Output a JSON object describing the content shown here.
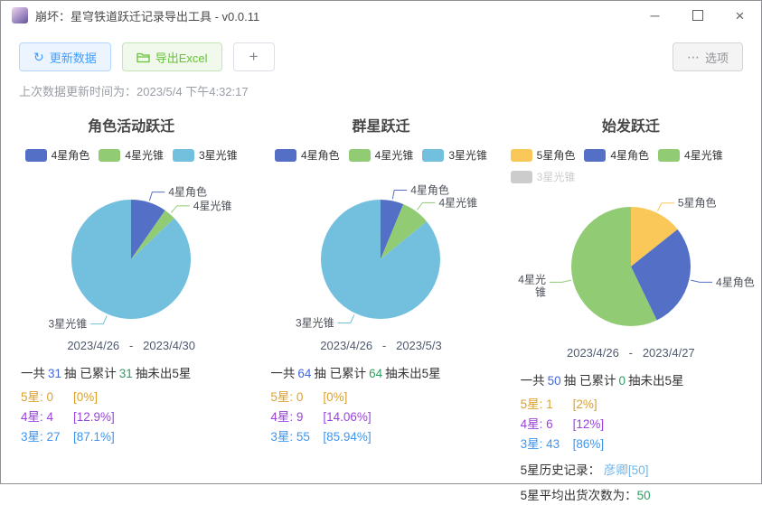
{
  "window": {
    "title": "崩坏：星穹铁道跃迁记录导出工具 - v0.0.11",
    "controls": {
      "minimize_glyph": "─",
      "close_glyph": "×"
    }
  },
  "toolbar": {
    "refresh_icon": "↻",
    "refresh_label": "更新数据",
    "export_label": "导出Excel",
    "add_label": "+",
    "options_icon": "⋯",
    "options_label": "选项"
  },
  "status_line": {
    "label": "上次数据更新时间为：",
    "value": "2023/5/4 下午4:32:17"
  },
  "colors": {
    "four_star_character": "#5470c6",
    "four_star_lightcone": "#91cc75",
    "three_star_lightcone": "#73c0de",
    "five_star_character": "#fac858",
    "disabled_legend": "#cccccc",
    "five_star_text": "#dca12c",
    "four_star_text": "#9b44dd",
    "three_star_text": "#3f96ee",
    "total_number": "#4168e0",
    "pity_number": "#2f9d63"
  },
  "chart_data": [
    {
      "type": "pie",
      "title": "角色活动跃迁",
      "legend": [
        {
          "label": "4星角色",
          "color": "#5470c6",
          "disabled": false
        },
        {
          "label": "4星光锥",
          "color": "#91cc75",
          "disabled": false
        },
        {
          "label": "3星光锥",
          "color": "#73c0de",
          "disabled": false
        }
      ],
      "slices": [
        {
          "label": "4星角色",
          "value": 3,
          "color": "#5470c6"
        },
        {
          "label": "4星光锥",
          "value": 1,
          "color": "#91cc75"
        },
        {
          "label": "3星光锥",
          "value": 27,
          "color": "#73c0de"
        }
      ],
      "date_range": "2023/4/26   -   2023/4/30",
      "summary": {
        "prefix": "一共",
        "total": 31,
        "mid": "抽 已累计",
        "pity": 31,
        "suffix": "抽未出5星"
      },
      "stats": [
        {
          "label": "5星:",
          "count": 0,
          "pct": "[0%]",
          "color": "#dca12c"
        },
        {
          "label": "4星:",
          "count": 4,
          "pct": "[12.9%]",
          "color": "#9b44dd"
        },
        {
          "label": "3星:",
          "count": 27,
          "pct": "[87.1%]",
          "color": "#3f96ee"
        }
      ],
      "extras": []
    },
    {
      "type": "pie",
      "title": "群星跃迁",
      "legend": [
        {
          "label": "4星角色",
          "color": "#5470c6",
          "disabled": false
        },
        {
          "label": "4星光锥",
          "color": "#91cc75",
          "disabled": false
        },
        {
          "label": "3星光锥",
          "color": "#73c0de",
          "disabled": false
        }
      ],
      "slices": [
        {
          "label": "4星角色",
          "value": 4,
          "color": "#5470c6"
        },
        {
          "label": "4星光锥",
          "value": 5,
          "color": "#91cc75"
        },
        {
          "label": "3星光锥",
          "value": 55,
          "color": "#73c0de"
        }
      ],
      "date_range": "2023/4/26   -   2023/5/3",
      "summary": {
        "prefix": "一共",
        "total": 64,
        "mid": "抽 已累计",
        "pity": 64,
        "suffix": "抽未出5星"
      },
      "stats": [
        {
          "label": "5星:",
          "count": 0,
          "pct": "[0%]",
          "color": "#dca12c"
        },
        {
          "label": "4星:",
          "count": 9,
          "pct": "[14.06%]",
          "color": "#9b44dd"
        },
        {
          "label": "3星:",
          "count": 55,
          "pct": "[85.94%]",
          "color": "#3f96ee"
        }
      ],
      "extras": []
    },
    {
      "type": "pie",
      "title": "始发跃迁",
      "legend": [
        {
          "label": "5星角色",
          "color": "#fac858",
          "disabled": false
        },
        {
          "label": "4星角色",
          "color": "#5470c6",
          "disabled": false
        },
        {
          "label": "4星光锥",
          "color": "#91cc75",
          "disabled": false
        },
        {
          "label": "3星光锥",
          "color": "#73c0de",
          "disabled": true
        }
      ],
      "slices": [
        {
          "label": "5星角色",
          "value": 1,
          "color": "#fac858"
        },
        {
          "label": "4星角色",
          "value": 2,
          "color": "#5470c6"
        },
        {
          "label": "4星光锥",
          "value": 4,
          "color": "#91cc75",
          "wrap_at": 3
        }
      ],
      "date_range": "2023/4/26   -   2023/4/27",
      "summary": {
        "prefix": "一共",
        "total": 50,
        "mid": "抽 已累计",
        "pity": 0,
        "suffix": "抽未出5星"
      },
      "stats": [
        {
          "label": "5星:",
          "count": 1,
          "pct": "[2%]",
          "color": "#dca12c"
        },
        {
          "label": "4星:",
          "count": 6,
          "pct": "[12%]",
          "color": "#9b44dd"
        },
        {
          "label": "3星:",
          "count": 43,
          "pct": "[86%]",
          "color": "#3f96ee"
        }
      ],
      "extras": [
        {
          "label": "5星历史记录： ",
          "value": "彦卿[50]",
          "value_color": "#72b5e8"
        },
        {
          "label": "5星平均出货次数为：",
          "value": "50",
          "value_color": "#2f9d63"
        }
      ]
    }
  ]
}
